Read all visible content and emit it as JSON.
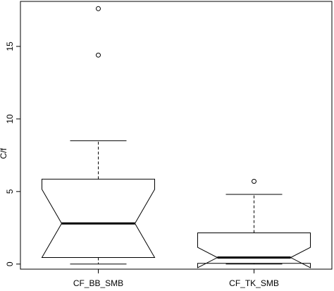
{
  "chart_data": {
    "type": "boxplot",
    "title": "",
    "xlabel": "",
    "ylabel": "C/f",
    "notched": true,
    "categories": [
      "CF_BB_SMB",
      "CF_TK_SMB"
    ],
    "ylim": [
      -0.35,
      18.1
    ],
    "yticks": [
      0,
      5,
      10,
      15
    ],
    "series": [
      {
        "category": "CF_BB_SMB",
        "whisker_low": 0.0,
        "q1": 0.45,
        "median": 2.8,
        "q3": 5.85,
        "whisker_high": 8.5,
        "notch_low": 0.45,
        "notch_high": 5.15,
        "outliers": [
          14.4,
          17.6
        ]
      },
      {
        "category": "CF_TK_SMB",
        "whisker_low": 0.0,
        "q1": 0.05,
        "median": 0.45,
        "q3": 2.15,
        "whisker_high": 4.8,
        "notch_low": -0.25,
        "notch_high": 1.15,
        "outliers": [
          5.7
        ]
      }
    ],
    "grid": false,
    "legend": "none",
    "colors": {
      "stroke": "#000000",
      "fill": "#ffffff",
      "background": "#ffffff"
    }
  }
}
